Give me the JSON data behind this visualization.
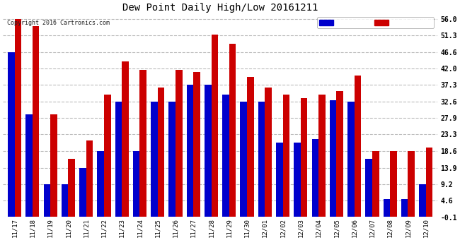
{
  "title": "Dew Point Daily High/Low 20161211",
  "copyright": "Copyright 2016 Cartronics.com",
  "categories": [
    "11/17",
    "11/18",
    "11/19",
    "11/20",
    "11/21",
    "11/22",
    "11/23",
    "11/24",
    "11/25",
    "11/26",
    "11/27",
    "11/28",
    "11/29",
    "11/30",
    "12/01",
    "12/02",
    "12/03",
    "12/04",
    "12/05",
    "12/06",
    "12/07",
    "12/08",
    "12/09",
    "12/10"
  ],
  "low_values": [
    46.6,
    29.0,
    9.2,
    9.2,
    13.9,
    18.6,
    32.6,
    18.6,
    32.6,
    32.6,
    37.3,
    37.3,
    34.5,
    32.6,
    32.6,
    21.0,
    21.0,
    22.0,
    33.0,
    32.6,
    16.5,
    5.0,
    5.0,
    9.2
  ],
  "high_values": [
    56.0,
    54.0,
    29.0,
    16.5,
    21.5,
    34.5,
    44.0,
    41.5,
    36.5,
    41.5,
    41.0,
    51.5,
    49.0,
    39.5,
    36.5,
    34.5,
    33.5,
    34.5,
    35.5,
    40.0,
    18.6,
    18.6,
    18.6,
    19.5
  ],
  "low_color": "#0000cc",
  "high_color": "#cc0000",
  "bg_color": "#ffffff",
  "grid_color": "#bbbbbb",
  "yticks": [
    -0.1,
    4.6,
    9.2,
    13.9,
    18.6,
    23.3,
    27.9,
    32.6,
    37.3,
    42.0,
    46.6,
    51.3,
    56.0
  ],
  "ymin": -0.1,
  "ymax": 57.5,
  "bar_width": 0.38
}
